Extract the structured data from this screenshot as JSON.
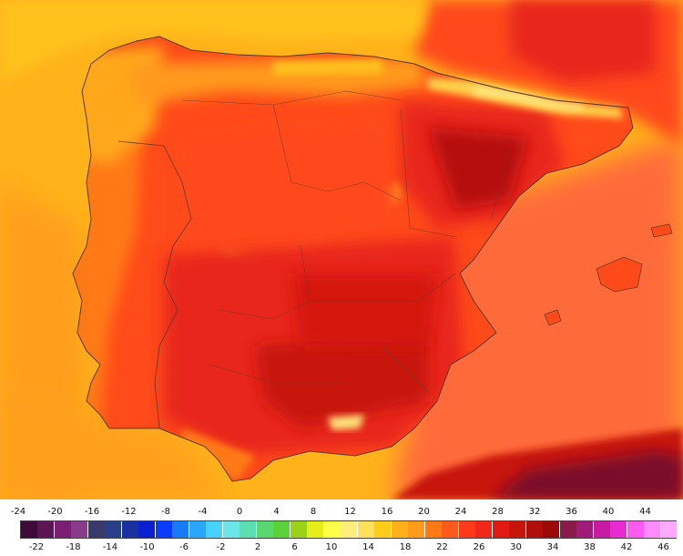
{
  "map": {
    "sea_colors": {
      "atlantic_north": "#ffc21a",
      "atlantic_west": "#ffa31a",
      "mediterranean": "#ff6a3a",
      "biscay_east": "#ff4a1a"
    },
    "land_colors": {
      "base": "#ff3a1a",
      "hot": "#e61f0f",
      "very_hot": "#c8130a",
      "extreme": "#9b0a08",
      "cool": "#ffb000",
      "mild": "#ff7a14",
      "mountain": "#ffe27a",
      "africa_extreme": "#7a0a2a"
    }
  },
  "legend": {
    "upper_labels": [
      "-24",
      "-20",
      "-16",
      "-12",
      "-8",
      "-4",
      "0",
      "4",
      "8",
      "12",
      "16",
      "20",
      "24",
      "28",
      "32",
      "36",
      "40",
      "44"
    ],
    "lower_labels": [
      "-22",
      "-18",
      "-14",
      "-10",
      "-6",
      "-2",
      "2",
      "6",
      "10",
      "14",
      "18",
      "22",
      "26",
      "30",
      "34",
      "38",
      "42",
      "46"
    ],
    "colors": [
      "#3d0a3a",
      "#5a1652",
      "#7c1f74",
      "#8a3a8a",
      "#3a3a6a",
      "#2a3f8a",
      "#1a2fa0",
      "#0a1fcf",
      "#0a3cff",
      "#1a7aff",
      "#2aa6ff",
      "#4ad2ff",
      "#6ae6e6",
      "#5ae0b0",
      "#5ad870",
      "#5ad23a",
      "#9ad21a",
      "#e6ee1a",
      "#ffff4a",
      "#ffee7a",
      "#ffe05a",
      "#ffcc1a",
      "#ffb01a",
      "#ff9a1a",
      "#ff7a14",
      "#ff5a1a",
      "#ff3a1a",
      "#f0281a",
      "#e01a10",
      "#c8130a",
      "#b00e0a",
      "#9b0a08",
      "#8a1a4a",
      "#a01a7a",
      "#c81aa0",
      "#e82ad2",
      "#ff5af0",
      "#ff8aff",
      "#ffaaff"
    ]
  }
}
